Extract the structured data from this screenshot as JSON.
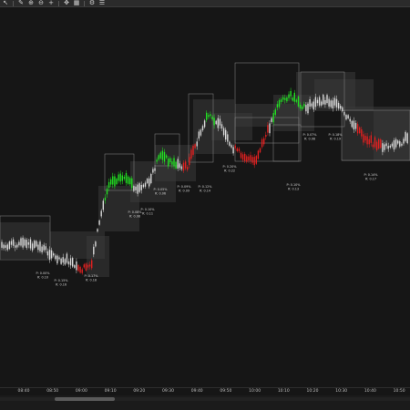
{
  "toolbar": {
    "buttons": [
      {
        "name": "pointer-icon",
        "glyph": "↖"
      },
      {
        "name": "pencil-icon",
        "glyph": "✎"
      },
      {
        "name": "zoom-in-icon",
        "glyph": "⊕"
      },
      {
        "name": "zoom-out-icon",
        "glyph": "⊖"
      },
      {
        "name": "crosshair-icon",
        "glyph": "+"
      },
      {
        "name": "pan-icon",
        "glyph": "✥"
      },
      {
        "name": "grid-icon",
        "glyph": "▦"
      },
      {
        "name": "settings-icon",
        "glyph": "⚙"
      },
      {
        "name": "list-icon",
        "glyph": "☰"
      }
    ]
  },
  "time_axis": {
    "labels": [
      "08:40",
      "08:50",
      "09:00",
      "09:10",
      "09:20",
      "09:30",
      "09:40",
      "09:50",
      "10:00",
      "10:10",
      "10:20",
      "10:30",
      "10:40",
      "10:50"
    ]
  },
  "colors": {
    "background": "#161616",
    "up": "#22e022",
    "down": "#e02020",
    "neutral": "#d8d8d8",
    "box_fill": "#3a3a3a",
    "box_border": "#8a8a8a"
  },
  "annotations": [
    {
      "line1": "P: 0.00%",
      "line2": "R: 0.10",
      "line3": ""
    },
    {
      "line1": "P: 0.15%",
      "line2": "R: 0.16",
      "line3": ""
    },
    {
      "line1": "P: 0.17%",
      "line2": "R: 0.18",
      "line3": ""
    },
    {
      "line1": "P: 0.08%",
      "line2": "R: 0.08",
      "line3": ""
    },
    {
      "line1": "P: 0.10%",
      "line2": "R: 0.11",
      "line3": ""
    },
    {
      "line1": "P: 0.05%",
      "line2": "R: 0.06",
      "line3": ""
    },
    {
      "line1": "P: 0.09%",
      "line2": "R: 0.09",
      "line3": ""
    },
    {
      "line1": "P: 0.12%",
      "line2": "R: 0.14",
      "line3": ""
    },
    {
      "line1": "P: 0.20%",
      "line2": "R: 0.22",
      "line3": ""
    },
    {
      "line1": "P: 0.10%",
      "line2": "R: 0.13",
      "line3": ""
    },
    {
      "line1": "P: 0.07%",
      "line2": "R: 0.08",
      "line3": ""
    },
    {
      "line1": "P: 0.18%",
      "line2": "R: 0.19",
      "line3": ""
    },
    {
      "line1": "P: 0.14%",
      "line2": "R: 0.17",
      "line3": ""
    }
  ]
}
